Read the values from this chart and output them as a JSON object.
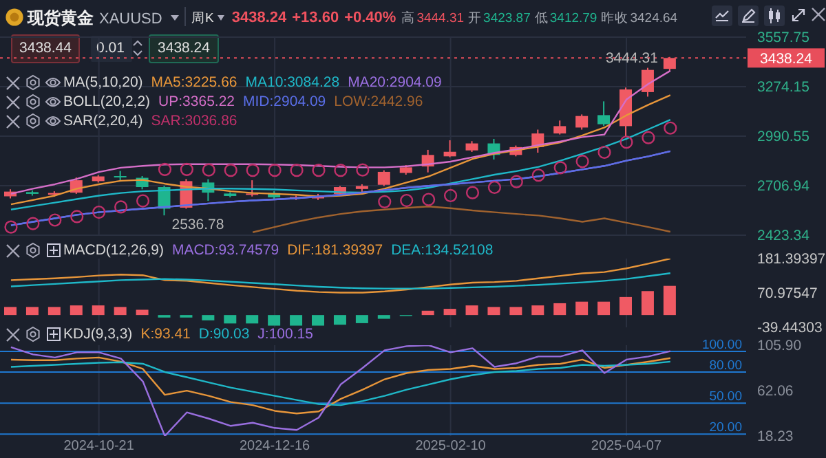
{
  "chart_data": [
    {
      "type": "candlestick",
      "title": "现货黄金",
      "subtitle": "XAUUSD",
      "categories": [
        null,
        null,
        null,
        null,
        "2024-10-21",
        null,
        null,
        null,
        null,
        null,
        null,
        null,
        "2024-12-16",
        null,
        null,
        null,
        null,
        null,
        null,
        null,
        "2025-02-10",
        null,
        null,
        null,
        null,
        null,
        null,
        null,
        "2025-04-07",
        null,
        null
      ],
      "ohlc": [
        [
          2646,
          2686,
          2634,
          2673
        ],
        [
          2670,
          2680,
          2650,
          2660
        ],
        [
          2655,
          2675,
          2645,
          2665
        ],
        [
          2667,
          2754,
          2660,
          2738
        ],
        [
          2733,
          2768,
          2725,
          2760
        ],
        [
          2762,
          2791,
          2738,
          2757
        ],
        [
          2752,
          2762,
          2686,
          2699
        ],
        [
          2699,
          2707,
          2536.78,
          2575
        ],
        [
          2581,
          2745,
          2575,
          2733
        ],
        [
          2725,
          2744,
          2620,
          2667
        ],
        [
          2662,
          2670,
          2640,
          2648
        ],
        [
          2655,
          2738,
          2645,
          2662
        ],
        [
          2665,
          2675,
          2630,
          2640
        ],
        [
          2635,
          2650,
          2625,
          2642
        ],
        [
          2634,
          2660,
          2625,
          2648
        ],
        [
          2660,
          2705,
          2655,
          2699
        ],
        [
          2688,
          2715,
          2670,
          2705
        ],
        [
          2712,
          2795,
          2705,
          2786
        ],
        [
          2780,
          2825,
          2770,
          2812
        ],
        [
          2817,
          2912,
          2783,
          2883
        ],
        [
          2875,
          2967,
          2870,
          2901
        ],
        [
          2909,
          2962,
          2900,
          2949
        ],
        [
          2949,
          2975,
          2857,
          2883
        ],
        [
          2883,
          2937,
          2875,
          2928
        ],
        [
          2928,
          3028,
          2896,
          3006
        ],
        [
          3006,
          3080,
          3000,
          3048
        ],
        [
          3040,
          3115,
          3028,
          3106
        ],
        [
          3111,
          3190,
          3050,
          3059
        ],
        [
          3048,
          3269,
          2988,
          3258
        ],
        [
          3243,
          3382,
          3217,
          3370
        ],
        [
          3376,
          3444.31,
          3360,
          3438.24
        ]
      ],
      "colors": [
        "#f05a64",
        "#1fb58f",
        "#f05a64",
        "#f05a64",
        "#f05a64",
        "#1fb58f",
        "#1fb58f",
        "#1fb58f",
        "#f05a64",
        "#1fb58f",
        "#1fb58f",
        "#f05a64",
        "#1fb58f",
        "#f05a64",
        "#f05a64",
        "#f05a64",
        "#f05a64",
        "#f05a64",
        "#f05a64",
        "#f05a64",
        "#f05a64",
        "#f05a64",
        "#1fb58f",
        "#f05a64",
        "#f05a64",
        "#f05a64",
        "#f05a64",
        "#1fb58f",
        "#f05a64",
        "#f05a64",
        "#f05a64"
      ],
      "series": [
        {
          "name": "MA5:3225.66",
          "type": "line",
          "color": "#e8963a",
          "values": [
            2600,
            2625,
            2650,
            2690,
            2715,
            2735,
            2740,
            2718,
            2700,
            2690,
            2675,
            2665,
            2660,
            2655,
            2645,
            2650,
            2660,
            2690,
            2725,
            2760,
            2810,
            2860,
            2890,
            2910,
            2930,
            2955,
            2995,
            3040,
            3110,
            3170,
            3225.66
          ]
        },
        {
          "name": "MA10:3084.28",
          "type": "line",
          "color": "#1fb8c8",
          "values": [
            2570,
            2590,
            2610,
            2630,
            2650,
            2665,
            2675,
            2680,
            2685,
            2690,
            2690,
            2688,
            2685,
            2680,
            2675,
            2670,
            2668,
            2672,
            2680,
            2695,
            2720,
            2745,
            2770,
            2790,
            2815,
            2850,
            2890,
            2930,
            2975,
            3030,
            3084.28
          ]
        },
        {
          "name": "MA20:2904.09",
          "type": "line",
          "color": "#9a6fe0",
          "values": [
            2480,
            2500,
            2520,
            2540,
            2555,
            2565,
            2575,
            2585,
            2595,
            2605,
            2615,
            2622,
            2628,
            2635,
            2645,
            2655,
            2668,
            2682,
            2695,
            2706,
            2715,
            2725,
            2735,
            2745,
            2760,
            2780,
            2800,
            2820,
            2850,
            2875,
            2904.09
          ]
        },
        {
          "name": "UP:3365.22",
          "type": "line",
          "color": "#d56ec8",
          "values": [
            2660,
            2690,
            2715,
            2746,
            2785,
            2810,
            2820,
            2828,
            2830,
            2830,
            2830,
            2830,
            2828,
            2825,
            2820,
            2815,
            2812,
            2812,
            2818,
            2830,
            2845,
            2870,
            2895,
            2915,
            2940,
            2960,
            2985,
            3000,
            3200,
            3290,
            3365.22
          ]
        },
        {
          "name": "MID:2904.09",
          "type": "line",
          "color": "#5a6ee8",
          "values": [
            2480,
            2500,
            2520,
            2540,
            2555,
            2565,
            2575,
            2585,
            2595,
            2605,
            2615,
            2622,
            2628,
            2635,
            2645,
            2655,
            2668,
            2682,
            2695,
            2706,
            2715,
            2725,
            2735,
            2745,
            2760,
            2780,
            2800,
            2820,
            2850,
            2875,
            2904.09
          ]
        },
        {
          "name": "LOW:2442.96",
          "type": "line",
          "color": "#a0622e",
          "values": [
            null,
            null,
            null,
            null,
            null,
            null,
            null,
            null,
            null,
            null,
            null,
            2440,
            2470,
            2500,
            2525,
            2545,
            2560,
            2570,
            2580,
            2588,
            2578,
            2565,
            2555,
            2545,
            2536,
            2520,
            2500,
            2520,
            2495,
            2470,
            2442.96
          ]
        },
        {
          "name": "SAR:3036.86",
          "type": "scatter",
          "marker": "circle",
          "color": "#c0306a",
          "values": [
            2470,
            2490,
            2510,
            2530,
            2555,
            2585,
            2620,
            2800,
            2800,
            2797,
            2795,
            2795,
            2795,
            2795,
            2795,
            2795,
            2797,
            2615,
            2622,
            2628,
            2650,
            2667,
            2697,
            2730,
            2767,
            2810,
            2846,
            2898,
            2956,
            2982,
            3036.86
          ]
        }
      ],
      "annotations": [
        "周K",
        "3438.24",
        "+13.60",
        "+0.40%",
        "高",
        "3444.31",
        "开",
        "3423.87",
        "低",
        "3412.79",
        "昨收",
        "3424.64",
        "3438.44",
        "0.01",
        "3438.24",
        "MA(5,10,20)",
        "BOLL(20,2,2)",
        "SAR(2,20,4)",
        {
          "text": "3444.31",
          "y": 3444.31
        },
        "2536.78"
      ],
      "ref_lines": [
        {
          "axis": "y",
          "value": 3438.24,
          "label": "3438.24",
          "color": "#e84e5b",
          "line_style": "dotted"
        }
      ],
      "ylim": [
        2423.34,
        3557.75
      ],
      "yticks": [
        2423.34,
        2706.94,
        2990.55,
        3274.15,
        3557.75
      ],
      "grid": true,
      "legend": "top",
      "tick_labels": "y"
    },
    {
      "type": "bar",
      "categories": [
        null,
        null,
        null,
        null,
        "2024-10-21",
        null,
        null,
        null,
        null,
        null,
        null,
        null,
        "2024-12-16",
        null,
        null,
        null,
        null,
        null,
        null,
        null,
        "2025-02-10",
        null,
        null,
        null,
        null,
        null,
        null,
        null,
        "2025-04-07",
        null,
        null
      ],
      "series": [
        {
          "type": "bar",
          "color": "#9a6fe0",
          "colors": [
            "#f05a64",
            "#f05a64",
            "#f05a64",
            "#f05a64",
            "#f05a64",
            "#f05a64",
            "#f05a64",
            "#1fb58f",
            "#1fb58f",
            "#1fb58f",
            "#1fb58f",
            "#1fb58f",
            "#1fb58f",
            "#1fb58f",
            "#1fb58f",
            "#1fb58f",
            "#1fb58f",
            "#1fb58f",
            "#1fb58f",
            "#f05a64",
            "#f05a64",
            "#f05a64",
            "#f05a64",
            "#f05a64",
            "#f05a64",
            "#f05a64",
            "#f05a64",
            "#f05a64",
            "#f05a64",
            "#f05a64",
            "#f05a64"
          ],
          "values": [
            26,
            26,
            26,
            31,
            31,
            26,
            17,
            -8,
            -8,
            -17,
            -27,
            -27,
            -34,
            -34,
            -34,
            -31,
            -26,
            -12,
            -3,
            14,
            20,
            31,
            26,
            26,
            31,
            38,
            43,
            43,
            58,
            77,
            93.74579
          ]
        },
        {
          "name": "DIF:181.39397",
          "type": "line",
          "color": "#e8963a",
          "values": [
            112,
            115,
            118,
            122,
            127,
            130,
            128,
            112,
            110,
            103,
            96,
            90,
            84,
            78,
            74,
            72,
            72,
            76,
            82,
            90,
            98,
            104,
            106,
            110,
            118,
            126,
            134,
            138,
            150,
            165,
            181.39397
          ]
        },
        {
          "name": "DEA:134.52108",
          "type": "line",
          "color": "#1fb8c8",
          "values": [
            92,
            96,
            100,
            104,
            108,
            112,
            114,
            116,
            114,
            111,
            107,
            103,
            99,
            95,
            91,
            88,
            86,
            85,
            85,
            85,
            87,
            89,
            91,
            94,
            97,
            101,
            105,
            110,
            116,
            125,
            134.52108
          ]
        }
      ],
      "annotations": [
        "MACD(12,26,9)",
        "MACD:93.74579"
      ],
      "ylim": [
        -39.44303,
        181.39397
      ],
      "yticks": [
        -39.44303,
        70.97547,
        181.39397
      ],
      "grid": "x",
      "legend": "top",
      "tick_labels": "y"
    },
    {
      "type": "line",
      "categories": [
        null,
        null,
        null,
        null,
        "2024-10-21",
        null,
        null,
        null,
        null,
        null,
        null,
        null,
        "2024-12-16",
        null,
        null,
        null,
        null,
        null,
        null,
        null,
        "2025-02-10",
        null,
        null,
        null,
        null,
        null,
        null,
        null,
        "2025-04-07",
        null,
        null
      ],
      "series": [
        {
          "name": "K:93.41",
          "color": "#e8963a",
          "values": [
            92,
            91.5,
            91.5,
            93,
            94,
            90,
            83,
            58,
            62,
            57,
            51,
            48,
            42.5,
            40,
            42,
            54,
            63,
            73,
            79,
            82,
            83,
            86,
            83,
            84,
            87,
            88,
            92,
            84,
            87,
            90,
            93.41
          ]
        },
        {
          "name": "D:90.03",
          "color": "#1fb8c8",
          "values": [
            85,
            86,
            87,
            88,
            89,
            89.5,
            88,
            80,
            75,
            70,
            65,
            61,
            57,
            53,
            49,
            48,
            52,
            57,
            63,
            68,
            73,
            77,
            80,
            81,
            83,
            84,
            87,
            86,
            87,
            88,
            90.03
          ]
        },
        {
          "name": "J:100.15",
          "color": "#9a6fe0",
          "values": [
            104,
            97,
            94,
            99,
            99,
            93,
            71,
            18.23,
            41,
            35,
            28,
            31,
            26,
            24,
            36,
            68,
            84,
            101,
            105,
            105.9,
            99,
            103,
            85,
            88.5,
            95,
            95,
            101,
            79,
            92,
            95,
            100.15
          ]
        }
      ],
      "annotations": [
        "KDJ(9,3,3)"
      ],
      "ref_lines": [
        {
          "axis": "y",
          "value": 100,
          "label": "100.00",
          "color": "#1f78d1"
        },
        {
          "axis": "y",
          "value": 80,
          "label": "80.00",
          "color": "#1f78d1"
        },
        {
          "axis": "y",
          "value": 50,
          "label": "50.00",
          "color": "#1f78d1"
        },
        {
          "axis": "y",
          "value": 20,
          "label": "20.00",
          "color": "#1f78d1"
        }
      ],
      "ylim": [
        18.23,
        105.9
      ],
      "yticks": [
        18.23,
        62.06,
        {
          "value": 105.9,
          "label": "105.90"
        }
      ],
      "grid": "x",
      "legend": "top"
    }
  ]
}
